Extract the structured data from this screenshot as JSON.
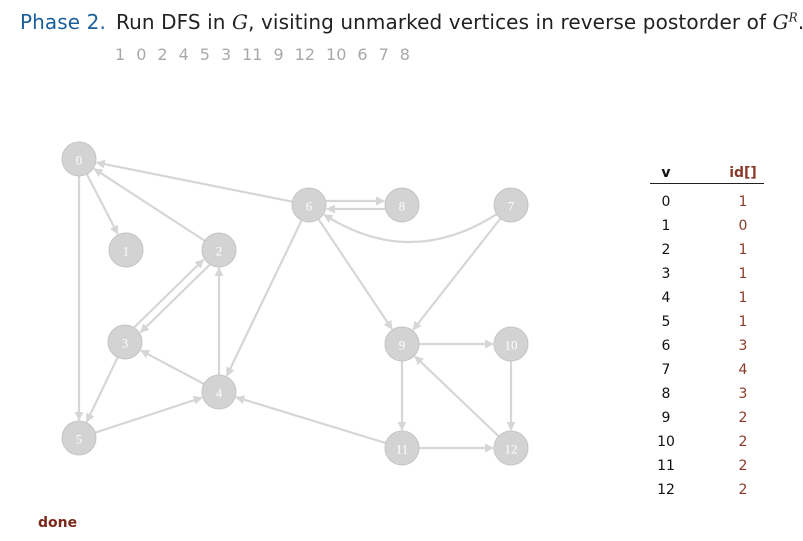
{
  "title": {
    "phase": "Phase 2.",
    "text_1": "Run DFS in ",
    "G": "G",
    "text_2": ", visiting unmarked vertices in reverse postorder of ",
    "GR_base": "G",
    "GR_sup": "R",
    "text_3": "."
  },
  "order": [
    "1",
    "0",
    "2",
    "4",
    "5",
    "3",
    "11",
    "9",
    "12",
    "10",
    "6",
    "7",
    "8"
  ],
  "graph": {
    "vertices": [
      "0",
      "1",
      "2",
      "3",
      "4",
      "5",
      "6",
      "7",
      "8",
      "9",
      "10",
      "11",
      "12"
    ],
    "edges": [
      [
        "0",
        "1"
      ],
      [
        "0",
        "5"
      ],
      [
        "2",
        "0"
      ],
      [
        "2",
        "3"
      ],
      [
        "3",
        "2"
      ],
      [
        "3",
        "5"
      ],
      [
        "4",
        "2"
      ],
      [
        "4",
        "3"
      ],
      [
        "5",
        "4"
      ],
      [
        "6",
        "0"
      ],
      [
        "6",
        "4"
      ],
      [
        "6",
        "8"
      ],
      [
        "6",
        "9"
      ],
      [
        "7",
        "6"
      ],
      [
        "7",
        "9"
      ],
      [
        "8",
        "6"
      ],
      [
        "9",
        "10"
      ],
      [
        "9",
        "11"
      ],
      [
        "10",
        "12"
      ],
      [
        "11",
        "4"
      ],
      [
        "11",
        "12"
      ],
      [
        "12",
        "9"
      ]
    ],
    "colors": {
      "vertex_fill": "#d3d3d3",
      "edge": "#d6d6d6",
      "label": "#ffffff"
    }
  },
  "table": {
    "header_v": "v",
    "header_id": "id[]",
    "rows": [
      {
        "v": "0",
        "id": "1"
      },
      {
        "v": "1",
        "id": "0"
      },
      {
        "v": "2",
        "id": "1"
      },
      {
        "v": "3",
        "id": "1"
      },
      {
        "v": "4",
        "id": "1"
      },
      {
        "v": "5",
        "id": "1"
      },
      {
        "v": "6",
        "id": "3"
      },
      {
        "v": "7",
        "id": "4"
      },
      {
        "v": "8",
        "id": "3"
      },
      {
        "v": "9",
        "id": "2"
      },
      {
        "v": "10",
        "id": "2"
      },
      {
        "v": "11",
        "id": "2"
      },
      {
        "v": "12",
        "id": "2"
      }
    ],
    "id_color": "#8b3a2a"
  },
  "status": "done"
}
